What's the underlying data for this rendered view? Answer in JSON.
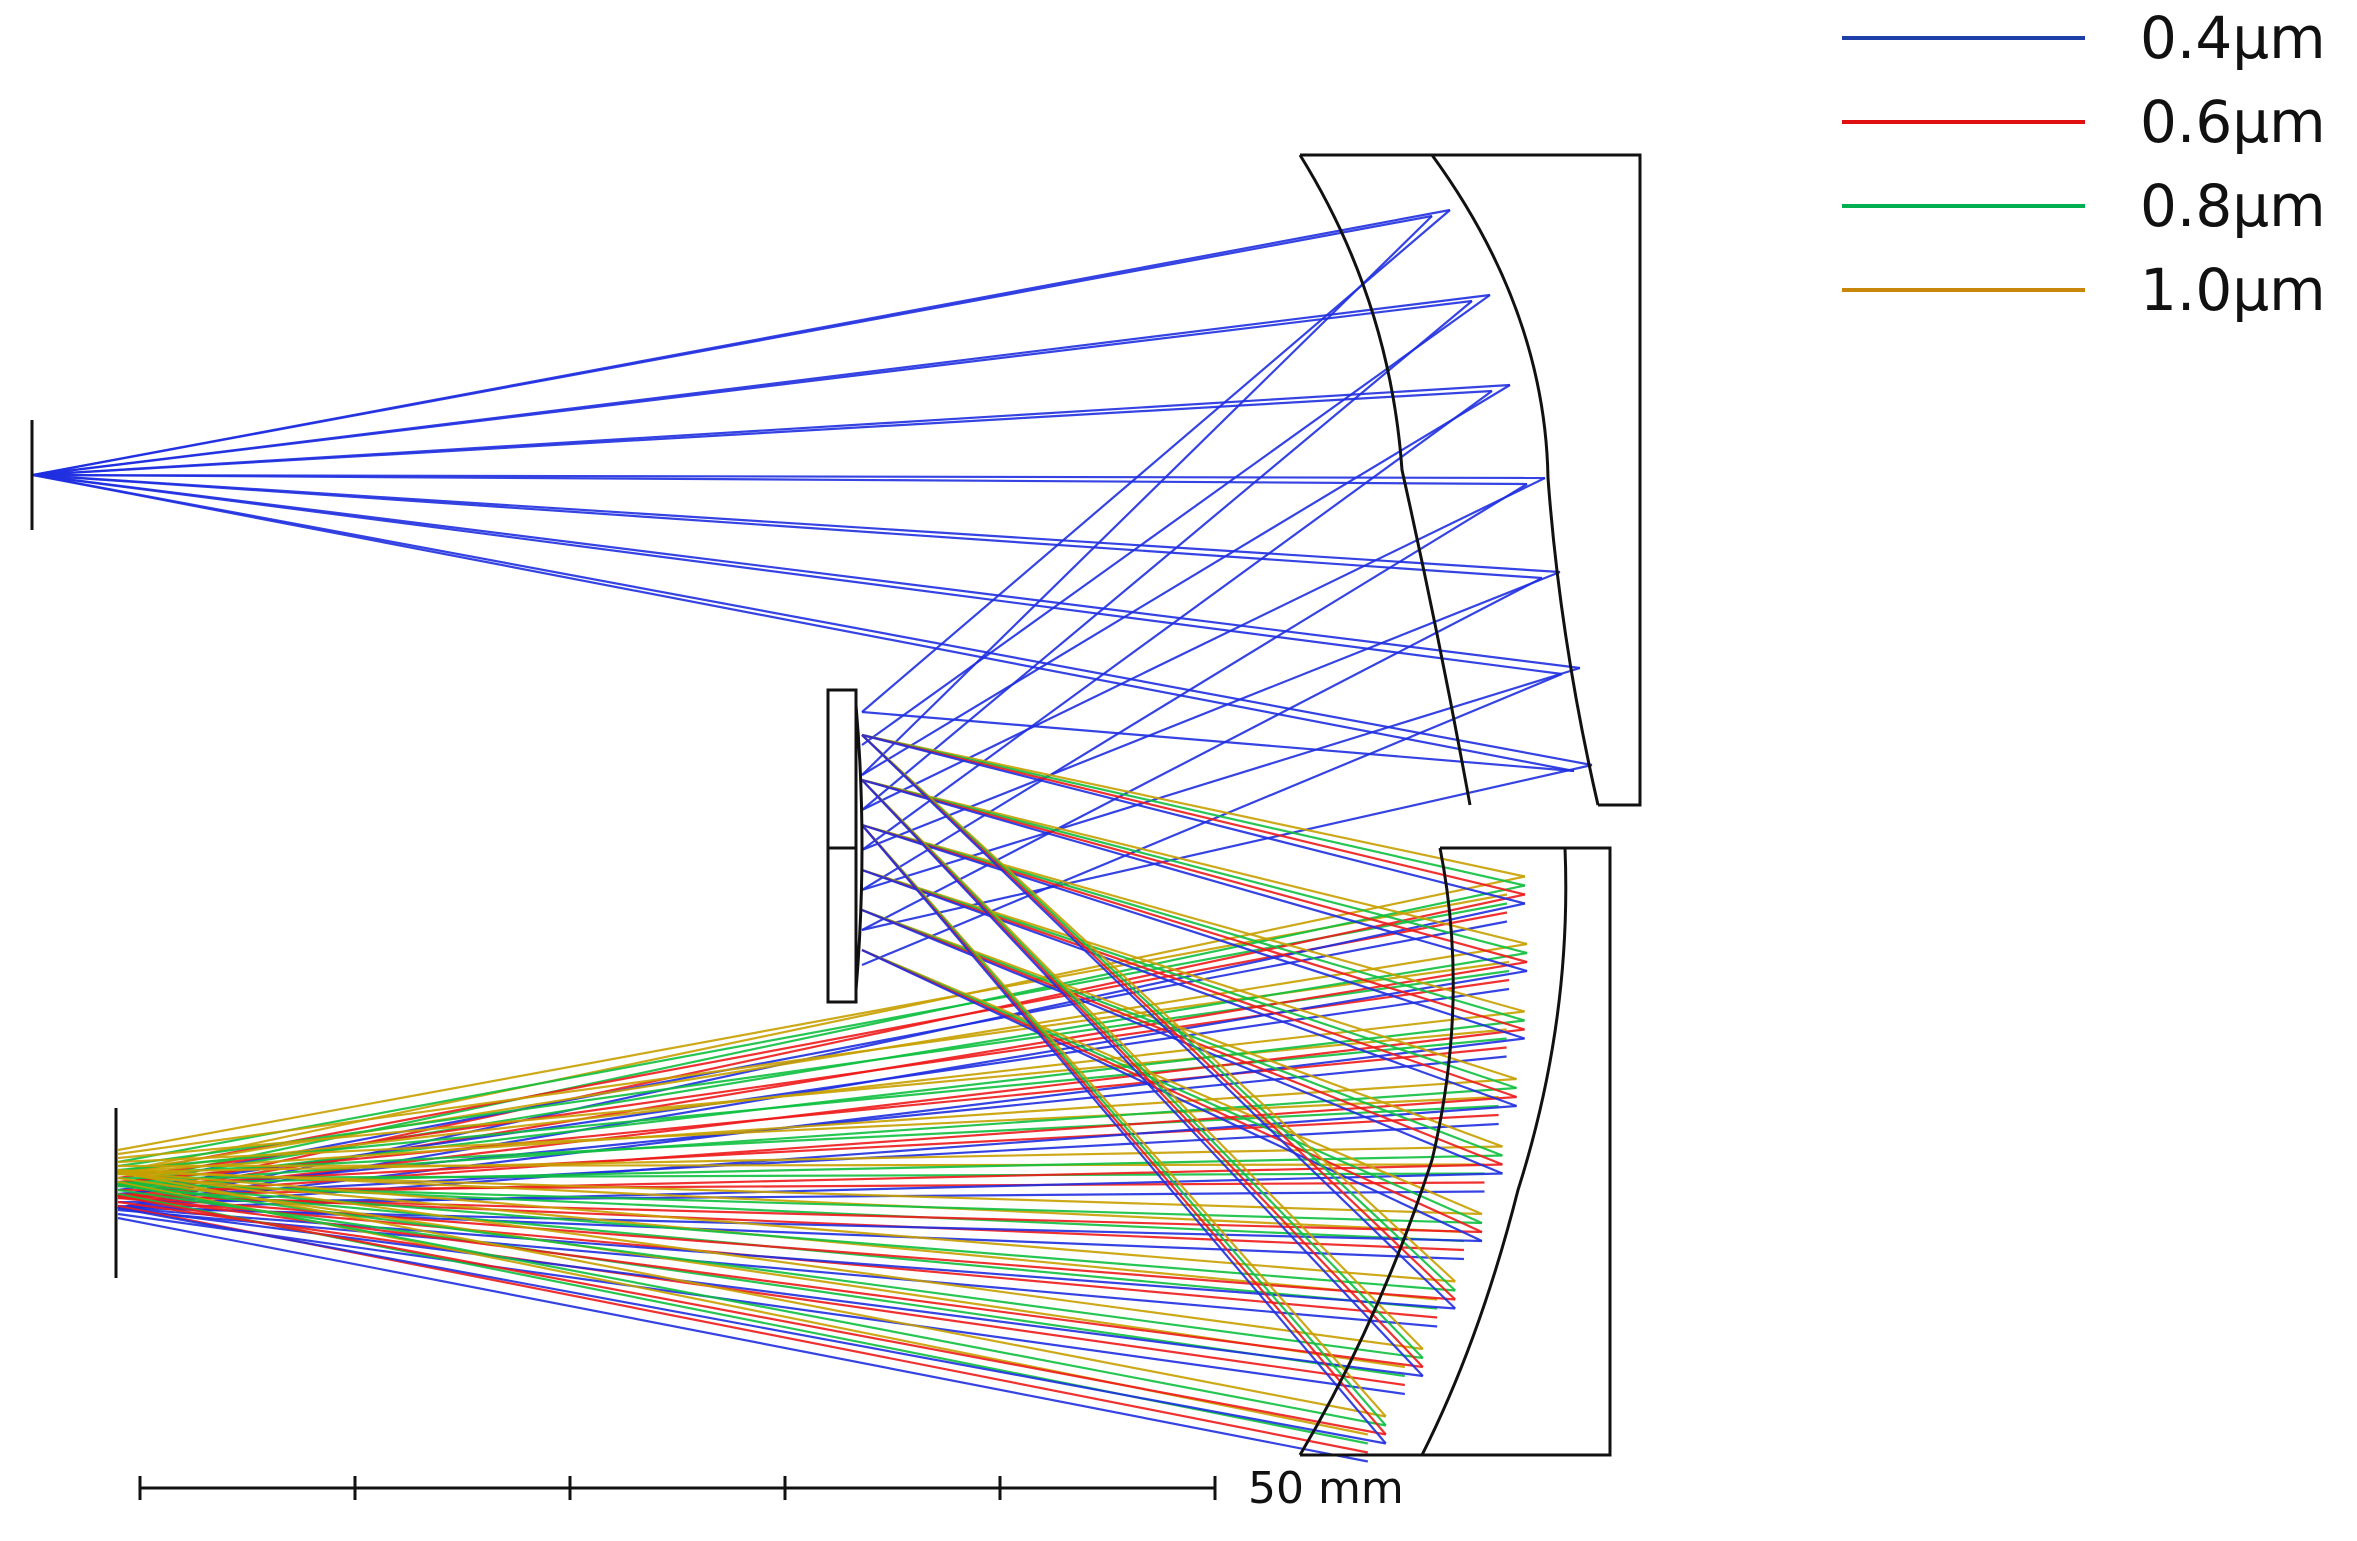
{
  "colors": {
    "wl_0_4": "#1f2fe0",
    "wl_0_6": "#ee1b1b",
    "wl_0_8": "#10c040",
    "wl_1_0": "#c8a000",
    "optics": "#111111",
    "background": "#ffffff"
  },
  "legend": {
    "items": [
      {
        "label": "0.4μm",
        "color": "#1f3fa8"
      },
      {
        "label": "0.6μm",
        "color": "#e01010"
      },
      {
        "label": "0.8μm",
        "color": "#00b050"
      },
      {
        "label": "1.0μm",
        "color": "#c8860a"
      }
    ]
  },
  "scale_bar": {
    "label": "50 mm",
    "divisions": 5
  }
}
